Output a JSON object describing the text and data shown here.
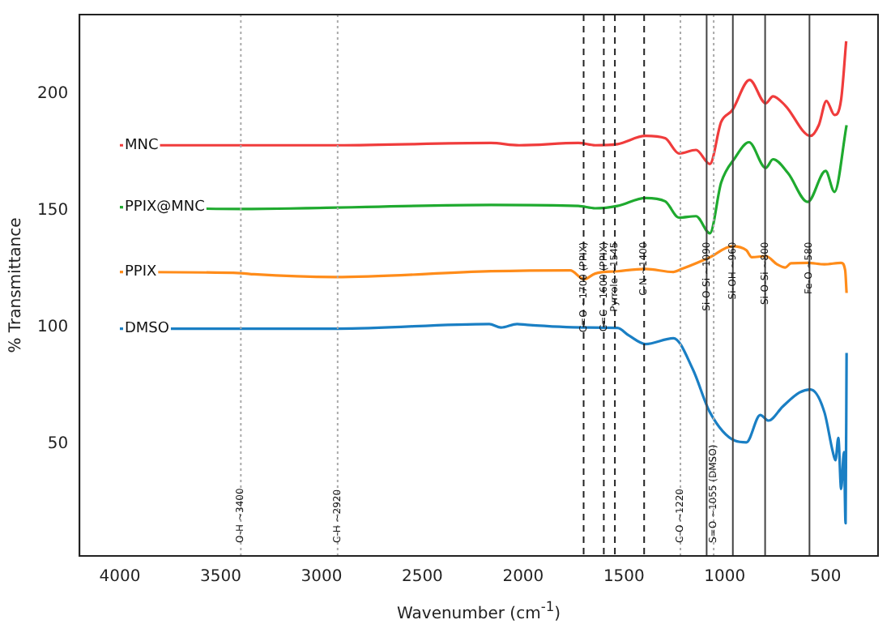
{
  "chart_data": {
    "type": "line",
    "xlabel": "Wavenumber (cm$^{-1}$)",
    "ylabel": "% Transmittance",
    "xlim": [
      4200,
      240
    ],
    "xticks": [
      4000,
      3500,
      3000,
      2500,
      2000,
      1500,
      1000,
      500
    ],
    "ylim": [
      2,
      234
    ],
    "yticks": [
      50,
      100,
      150,
      200
    ],
    "grid": false,
    "legend": false,
    "marker": "none",
    "line_style": "solid",
    "series": [
      {
        "name": "MNC",
        "color": "#f03c3c",
        "x": [
          4000,
          3400,
          2920,
          2160,
          2020,
          1726,
          1643,
          1532,
          1393,
          1296,
          1227,
          1143,
          1074,
          1018,
          963,
          877,
          797,
          761,
          700,
          575,
          534,
          496,
          456,
          423,
          398
        ],
        "values": [
          178,
          178,
          178,
          179,
          178,
          179,
          178,
          178.5,
          182,
          181,
          174.5,
          176,
          170,
          188,
          193,
          206,
          196,
          199,
          195,
          182,
          186.6,
          197,
          191,
          197.6,
          222.6
        ]
      },
      {
        "name": "PPIX@MNC",
        "color": "#1faa2f",
        "x": [
          4000,
          3400,
          2160,
          1726,
          1643,
          1532,
          1393,
          1296,
          1227,
          1143,
          1074,
          1018,
          950,
          880,
          797,
          761,
          686,
          589,
          500,
          456,
          396
        ],
        "values": [
          151.5,
          150.7,
          152.4,
          152,
          151,
          152,
          155.4,
          154,
          147,
          147.6,
          140.3,
          162,
          172.5,
          179.3,
          168.3,
          172,
          166,
          153.7,
          167,
          158,
          186.6
        ]
      },
      {
        "name": "PPIX",
        "color": "#ff8c1a",
        "x": [
          4000,
          3400,
          3335,
          2933,
          2160,
          1767,
          1698,
          1643,
          1532,
          1393,
          1255,
          1213,
          1074,
          963,
          893,
          866,
          797,
          741,
          700,
          672,
          589,
          506,
          423,
          403,
          396
        ],
        "values": [
          123.7,
          123.2,
          122.7,
          121.5,
          124,
          124.4,
          120.6,
          123,
          124,
          125,
          123.7,
          125,
          130,
          134.7,
          133,
          130,
          130.5,
          127,
          125.6,
          127.4,
          127.6,
          127,
          127.6,
          124.4,
          114.7
        ]
      },
      {
        "name": "DMSO",
        "color": "#1a7fc4",
        "x": [
          4000,
          2920,
          2168,
          2110,
          2030,
          1980,
          1698,
          1532,
          1476,
          1393,
          1255,
          1158,
          1074,
          950,
          893,
          824,
          783,
          713,
          630,
          575,
          506,
          464,
          451,
          437,
          423,
          409,
          401,
          396
        ],
        "values": [
          99.4,
          99.4,
          101.4,
          99.9,
          101.4,
          101,
          99.9,
          99.7,
          96.5,
          92.8,
          95.3,
          81.9,
          63.6,
          51.4,
          50.7,
          62.4,
          60,
          66,
          72,
          73.3,
          63.6,
          46.5,
          43,
          52.6,
          30.7,
          46.5,
          16,
          89
        ]
      }
    ],
    "ref_lines": [
      {
        "axis": "x",
        "value": 3400,
        "label": "O-H ~3400",
        "line_style": "dotted",
        "color": "#aaaaaa"
      },
      {
        "axis": "x",
        "value": 2920,
        "label": "C-H ~2920",
        "line_style": "dotted",
        "color": "#aaaaaa"
      },
      {
        "axis": "x",
        "value": 1700,
        "label": "C=O ~1700 (PPIX)",
        "line_style": "dashed",
        "color": "#222222"
      },
      {
        "axis": "x",
        "value": 1600,
        "label": "C=C ~1600 (PPIX)",
        "line_style": "dashed",
        "color": "#222222"
      },
      {
        "axis": "x",
        "value": 1545,
        "label": "Pyrrole ~1545",
        "line_style": "dashed",
        "color": "#222222"
      },
      {
        "axis": "x",
        "value": 1400,
        "label": "C-N ~1400",
        "line_style": "dashed",
        "color": "#222222"
      },
      {
        "axis": "x",
        "value": 1220,
        "label": "C-O ~1220",
        "line_style": "dotted",
        "color": "#aaaaaa"
      },
      {
        "axis": "x",
        "value": 1090,
        "label": "Si-O-Si ~1090",
        "line_style": "solid",
        "color": "#444444"
      },
      {
        "axis": "x",
        "value": 1055,
        "label": "S=O ~1055 (DMSO)",
        "line_style": "dotted",
        "color": "#aaaaaa"
      },
      {
        "axis": "x",
        "value": 960,
        "label": "Si-OH ~960",
        "line_style": "solid",
        "color": "#444444"
      },
      {
        "axis": "x",
        "value": 800,
        "label": "Si-O-Si ~800",
        "line_style": "solid",
        "color": "#444444"
      },
      {
        "axis": "x",
        "value": 580,
        "label": "Fe-O ~580",
        "line_style": "solid",
        "color": "#444444"
      }
    ]
  }
}
